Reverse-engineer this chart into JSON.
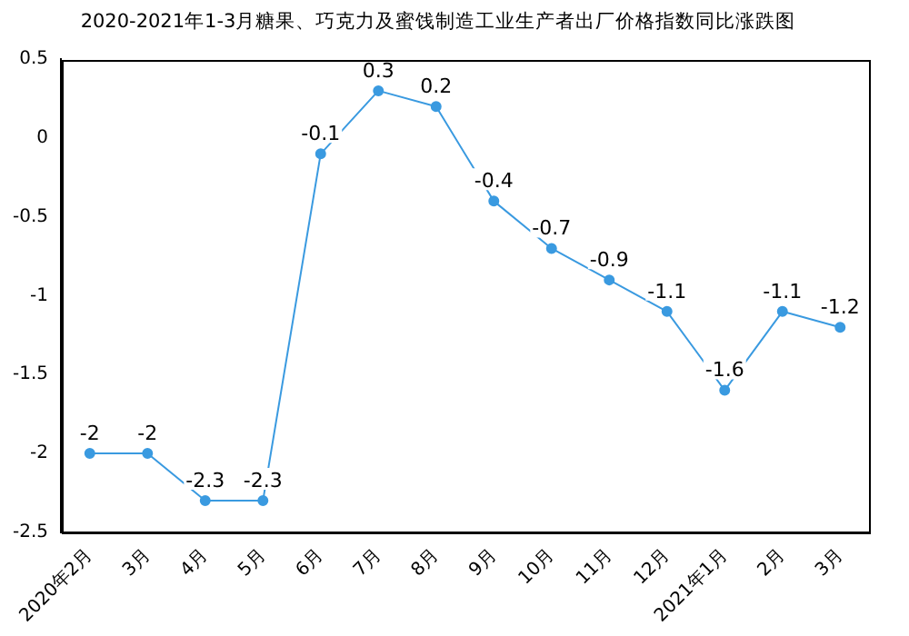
{
  "chart_data": {
    "type": "line",
    "title": "2020-2021年1-3月糖果、巧克力及蜜饯制造工业生产者出厂价格指数同比涨跌图",
    "categories": [
      "2020年2月",
      "3月",
      "4月",
      "5月",
      "6月",
      "7月",
      "8月",
      "9月",
      "10月",
      "11月",
      "12月",
      "2021年1月",
      "2月",
      "3月"
    ],
    "series": [
      {
        "color": "#3a9ae0",
        "values": [
          -2,
          -2,
          -2.3,
          -2.3,
          -0.1,
          0.3,
          0.2,
          -0.4,
          -0.7,
          -0.9,
          -1.1,
          -1.6,
          -1.1,
          -1.2
        ]
      }
    ],
    "ylim": [
      -2.5,
      0.5
    ],
    "yticks": [
      -2.5,
      -2,
      -1.5,
      -1,
      -0.5,
      0,
      0.5
    ],
    "grid": false,
    "legend": false,
    "marker": "circle",
    "line_style": "solid",
    "data_labels": true
  }
}
